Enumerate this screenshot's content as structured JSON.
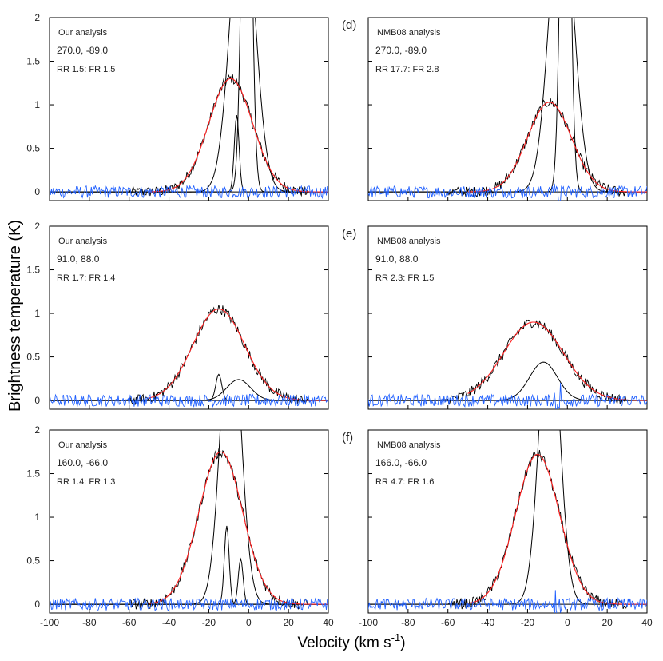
{
  "chart_data": {
    "type": "line",
    "ylabel": "Brightness temperature (K)",
    "xlabel_prefix": "Velocity (km s",
    "xlabel_sup": "-1",
    "xlabel_suffix": ")",
    "xlim": [
      -100,
      40
    ],
    "ylim": [
      -0.1,
      2
    ],
    "x_ticks": [
      "-100",
      "-80",
      "-60",
      "-40",
      "-20",
      "0",
      "20",
      "40"
    ],
    "y_ticks": [
      "0",
      "0.5",
      "1",
      "1.5",
      "2"
    ],
    "series_colors": {
      "gaussian_fit": "#ff2020",
      "spectrum": "#000000",
      "residual": "#2060ff"
    },
    "rows": [
      {
        "letter": "(d)",
        "left": {
          "title": "Our analysis",
          "coords": "270.0, -89.0",
          "ratios": "RR 1.5: FR 1.5",
          "fit": {
            "amp": 1.3,
            "center": -9,
            "sigma": 11
          },
          "components": [
            {
              "amp": 3.5,
              "center": -3,
              "sigma": 6
            },
            {
              "amp": 6.0,
              "center": -1,
              "sigma": 2.2
            },
            {
              "amp": 0.88,
              "center": -6,
              "sigma": 1.2
            }
          ]
        },
        "right": {
          "title": "NMB08 analysis",
          "coords": "270.0, -89.0",
          "ratios": "RR 17.7: FR 2.8",
          "fit": {
            "amp": 1.03,
            "center": -9,
            "sigma": 11
          },
          "components": [
            {
              "amp": 3.5,
              "center": -3,
              "sigma": 6
            },
            {
              "amp": 6.0,
              "center": -1,
              "sigma": 2.2
            }
          ]
        }
      },
      {
        "letter": "(e)",
        "left": {
          "title": "Our analysis",
          "coords": "91.0, 88.0",
          "ratios": "RR 1.7: FR 1.4",
          "fit": {
            "amp": 1.05,
            "center": -15,
            "sigma": 13
          },
          "components": [
            {
              "amp": 0.3,
              "center": -15,
              "sigma": 1.5
            },
            {
              "amp": 0.24,
              "center": -5,
              "sigma": 6
            }
          ]
        },
        "right": {
          "title": "NMB08 analysis",
          "coords": "91.0,   88.0",
          "ratios": "RR 2.3: FR 1.5",
          "fit": {
            "amp": 0.9,
            "center": -17,
            "sigma": 15
          },
          "components": [
            {
              "amp": 0.44,
              "center": -12,
              "sigma": 7
            }
          ]
        }
      },
      {
        "letter": "(f)",
        "left": {
          "title": "Our analysis",
          "coords": "160.0, -66.0",
          "ratios": "RR 1.4: FR 1.3",
          "fit": {
            "amp": 1.75,
            "center": -14,
            "sigma": 11
          },
          "components": [
            {
              "amp": 3.5,
              "center": -9,
              "sigma": 5
            },
            {
              "amp": 0.9,
              "center": -11,
              "sigma": 1.2
            },
            {
              "amp": 0.52,
              "center": -4,
              "sigma": 1.2
            }
          ]
        },
        "right": {
          "title": "NMB08 analysis",
          "coords": "166.0, -66.0",
          "ratios": "RR 4.7: FR 1.6",
          "fit": {
            "amp": 1.72,
            "center": -15,
            "sigma": 11
          },
          "components": [
            {
              "amp": 3.5,
              "center": -9,
              "sigma": 5
            }
          ]
        }
      }
    ]
  }
}
